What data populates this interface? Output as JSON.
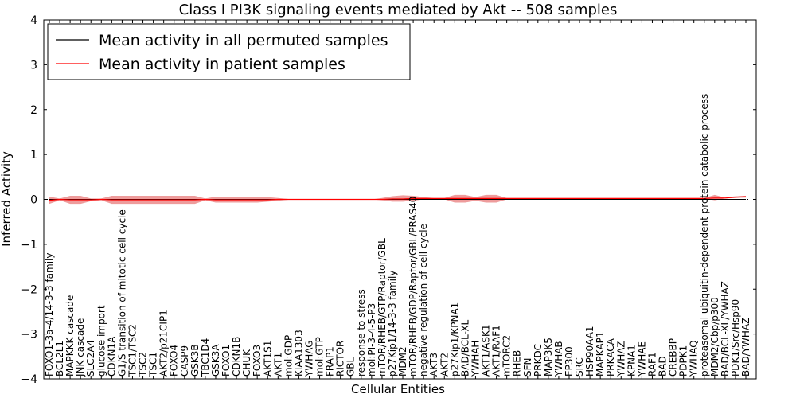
{
  "chart_data": {
    "type": "line",
    "title": "Class I PI3K signaling events mediated by Akt -- 508 samples",
    "xlabel": "Cellular Entities",
    "ylabel": "Inferred Activity",
    "ylim": [
      -4,
      4
    ],
    "yticks": [
      -4,
      -3,
      -2,
      -1,
      0,
      1,
      2,
      3,
      4
    ],
    "legend_position": "top-left",
    "categories": [
      "FOXO1-3a-4/14-3-3 family",
      "BCL2L1",
      "MAPKKK cascade",
      "JNK cascade",
      "SLC2A4",
      "glucose import",
      "CDKN1A",
      "G1/S transition of mitotic cell cycle",
      "TSC1/TSC2",
      "TSC2",
      "TSC1",
      "AKT2/p21CIP1",
      "FOXO4",
      "CASP9",
      "GSK3B",
      "TBC1D4",
      "GSK3A",
      "FOXO1",
      "CDKN1B",
      "CHUK",
      "FOXO3",
      "AKT1S1",
      "AKT1",
      "mol:GDP",
      "KIAA1303",
      "YWHAG",
      "mol:GTP",
      "FRAP1",
      "RICTOR",
      "GBL",
      "response to stress",
      "mol:PI-3-4-5-P3",
      "mTOR/RHEB/GTP/Raptor/GBL",
      "p27Kip1/14-3-3 family",
      "MDM2",
      "mTOR/RHEB/GDP/Raptor/GBL/PRAS40",
      "negative regulation of cell cycle",
      "AKT3",
      "AKT2",
      "p27Kip1/KPNA1",
      "BAD/BCL-XL",
      "YWHAH",
      "AKT1/ASK1",
      "AKT1/RAF1",
      "mTORC2",
      "RHEB",
      "SFN",
      "PRKDC",
      "MAP3K5",
      "YWHAB",
      "EP300",
      "SRC",
      "HSP90AA1",
      "MAPKAP1",
      "PRKACA",
      "YWHAZ",
      "KPNA1",
      "YWHAE",
      "RAF1",
      "BAD",
      "CREBBP",
      "PDPK1",
      "YWHAQ",
      "proteasomal ubiquitin-dependent protein catabolic process",
      "MDM2/Cbp/p300",
      "BAD/BCL-XL/YWHAZ",
      "PDK1/Src/Hsp90",
      "BAD/YWHAZ"
    ],
    "series": [
      {
        "name": "Mean activity in all permuted samples",
        "color": "#000000",
        "values": [
          0,
          0,
          0,
          0,
          0,
          0,
          0,
          0,
          0,
          0,
          0,
          0,
          0,
          0,
          0,
          0,
          0,
          0,
          0,
          0,
          0,
          0,
          0,
          0,
          0,
          0,
          0,
          0,
          0,
          0,
          0,
          0,
          0,
          0,
          0,
          0,
          0,
          0,
          0,
          0,
          0,
          0,
          0,
          0,
          0,
          0,
          0,
          0,
          0,
          0,
          0,
          0,
          0,
          0,
          0,
          0,
          0,
          0,
          0,
          0,
          0,
          0,
          0,
          0,
          0,
          0,
          0,
          0
        ]
      },
      {
        "name": "Mean activity in patient samples",
        "color": "#ff0000",
        "band_color": "#e87b7b",
        "values": [
          -0.02,
          0.0,
          -0.01,
          -0.01,
          -0.01,
          0.0,
          -0.01,
          -0.01,
          -0.01,
          -0.01,
          -0.01,
          -0.01,
          -0.01,
          -0.01,
          -0.01,
          0.0,
          -0.01,
          -0.01,
          -0.01,
          -0.01,
          -0.01,
          -0.01,
          0.0,
          0.0,
          0.0,
          0.0,
          0.0,
          0.0,
          0.0,
          0.0,
          0.0,
          0.0,
          0.0,
          0.01,
          0.01,
          0.02,
          0.02,
          0.02,
          0.02,
          0.02,
          0.02,
          0.02,
          0.02,
          0.02,
          0.02,
          0.02,
          0.02,
          0.02,
          0.02,
          0.02,
          0.02,
          0.02,
          0.02,
          0.02,
          0.02,
          0.02,
          0.02,
          0.02,
          0.02,
          0.02,
          0.02,
          0.02,
          0.02,
          0.02,
          0.03,
          0.03,
          0.05,
          0.06
        ],
        "band_lower": [
          -0.1,
          -0.02,
          -0.1,
          -0.1,
          -0.04,
          -0.02,
          -0.1,
          -0.1,
          -0.1,
          -0.1,
          -0.1,
          -0.1,
          -0.1,
          -0.1,
          -0.1,
          -0.02,
          -0.07,
          -0.07,
          -0.07,
          -0.07,
          -0.07,
          -0.05,
          -0.03,
          -0.01,
          0.0,
          0.0,
          0.0,
          0.0,
          0.0,
          0.0,
          0.0,
          0.0,
          -0.02,
          -0.05,
          -0.05,
          -0.03,
          0.0,
          0.0,
          0.0,
          -0.07,
          -0.07,
          -0.03,
          -0.07,
          -0.07,
          0.0,
          0.02,
          0.02,
          0.02,
          0.02,
          0.02,
          0.02,
          0.02,
          0.02,
          0.02,
          0.02,
          0.02,
          0.02,
          0.02,
          0.02,
          0.02,
          0.02,
          0.02,
          0.02,
          0.02,
          -0.02,
          0.02,
          0.03,
          0.04
        ],
        "band_upper": [
          0.06,
          0.02,
          0.08,
          0.08,
          0.02,
          0.02,
          0.08,
          0.08,
          0.08,
          0.08,
          0.08,
          0.08,
          0.08,
          0.08,
          0.08,
          0.02,
          0.06,
          0.06,
          0.06,
          0.06,
          0.06,
          0.05,
          0.03,
          0.01,
          0.0,
          0.0,
          0.0,
          0.0,
          0.0,
          0.0,
          0.0,
          0.0,
          0.03,
          0.07,
          0.09,
          0.08,
          0.05,
          0.03,
          0.03,
          0.1,
          0.1,
          0.05,
          0.1,
          0.1,
          0.03,
          0.03,
          0.03,
          0.03,
          0.03,
          0.03,
          0.03,
          0.03,
          0.03,
          0.03,
          0.03,
          0.03,
          0.03,
          0.03,
          0.03,
          0.03,
          0.03,
          0.03,
          0.03,
          0.03,
          0.1,
          0.04,
          0.07,
          0.08
        ]
      }
    ]
  }
}
